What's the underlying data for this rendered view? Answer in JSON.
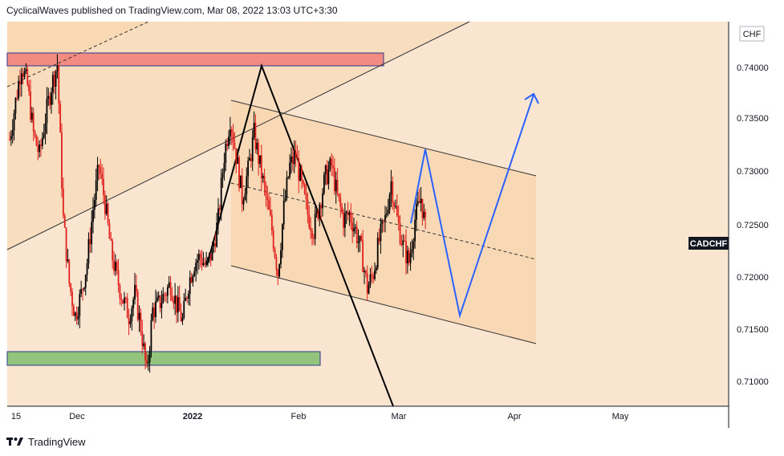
{
  "header": {
    "text": "CyclicalWaves published on TradingView.com, Mar 08, 2022 13:03 UTC+3:30"
  },
  "footer": {
    "brand": "TradingView"
  },
  "chart_data": {
    "type": "candlestick",
    "symbol": "CADCHF",
    "currency": "CHF",
    "ylim": [
      0.7075,
      0.7435
    ],
    "y_ticks": [
      "0.74000",
      "0.73500",
      "0.73000",
      "0.72500",
      "0.72000",
      "0.71500",
      "0.71000"
    ],
    "x_ticks": [
      "15",
      "Dec",
      "2022",
      "Feb",
      "Mar",
      "Apr",
      "May"
    ],
    "last_price": 0.7232,
    "close_series_approx": [
      0.7325,
      0.736,
      0.7395,
      0.7375,
      0.733,
      0.731,
      0.7345,
      0.7375,
      0.7395,
      0.725,
      0.719,
      0.716,
      0.718,
      0.721,
      0.726,
      0.73,
      0.7265,
      0.722,
      0.7195,
      0.7175,
      0.716,
      0.718,
      0.715,
      0.7105,
      0.7165,
      0.717,
      0.718,
      0.719,
      0.717,
      0.7155,
      0.719,
      0.721,
      0.7215,
      0.7205,
      0.722,
      0.725,
      0.731,
      0.7345,
      0.731,
      0.727,
      0.7295,
      0.733,
      0.73,
      0.727,
      0.724,
      0.72,
      0.726,
      0.73,
      0.731,
      0.728,
      0.7255,
      0.724,
      0.7265,
      0.729,
      0.73,
      0.727,
      0.725,
      0.7255,
      0.724,
      0.722,
      0.7185,
      0.72,
      0.723,
      0.725,
      0.7285,
      0.725,
      0.7225,
      0.721,
      0.725,
      0.727,
      0.7232
    ],
    "colors": {
      "up": "#000000",
      "down": "#e0201d",
      "background": "#fae5d0",
      "zone_fill": "#f8d7b0",
      "resistance_box": "#f28b82",
      "support_box": "#93c47d",
      "projection": "#2962ff",
      "label_bg": "#131722"
    }
  }
}
